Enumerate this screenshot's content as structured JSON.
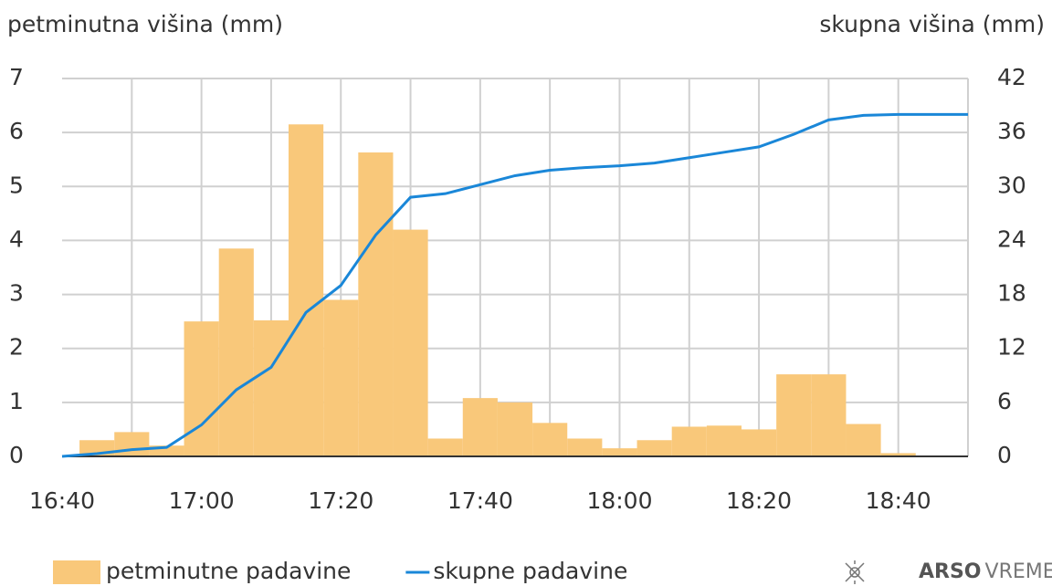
{
  "chart_data": {
    "type": "bar-line",
    "y_label": "petminutna višina (mm)",
    "y2_label": "skupna višina (mm)",
    "xlim": [
      "16:40",
      "18:50"
    ],
    "xticks": [
      "16:40",
      "17:00",
      "17:20",
      "17:40",
      "18:00",
      "18:20",
      "18:40"
    ],
    "xgrid": [
      "16:50",
      "17:00",
      "17:10",
      "17:20",
      "17:30",
      "17:40",
      "17:50",
      "18:00",
      "18:10",
      "18:20",
      "18:30",
      "18:40",
      "18:50"
    ],
    "ylim": [
      0,
      7
    ],
    "yticks": [
      0,
      1,
      2,
      3,
      4,
      5,
      6,
      7
    ],
    "y2lim": [
      0,
      42
    ],
    "y2ticks": [
      0,
      6,
      12,
      18,
      24,
      30,
      36,
      42
    ],
    "grid": true,
    "series": [
      {
        "name": "petminutne padavine",
        "type": "bar",
        "color": "#f9c87a",
        "x": [
          "16:45",
          "16:50",
          "16:55",
          "17:00",
          "17:05",
          "17:10",
          "17:15",
          "17:20",
          "17:25",
          "17:30",
          "17:35",
          "17:40",
          "17:45",
          "17:50",
          "17:55",
          "18:00",
          "18:05",
          "18:10",
          "18:15",
          "18:20",
          "18:25",
          "18:30",
          "18:35",
          "18:40"
        ],
        "values": [
          0.3,
          0.45,
          0.2,
          2.5,
          3.85,
          2.52,
          6.15,
          2.9,
          5.63,
          4.2,
          0.33,
          1.08,
          1.0,
          0.62,
          0.33,
          0.15,
          0.3,
          0.55,
          0.57,
          0.5,
          1.52,
          1.52,
          0.6,
          0.06
        ]
      },
      {
        "name": "skupne padavine",
        "type": "line",
        "axis": "y2",
        "color": "#1a87d8",
        "x": [
          "16:40",
          "16:45",
          "16:50",
          "16:55",
          "17:00",
          "17:05",
          "17:10",
          "17:15",
          "17:20",
          "17:25",
          "17:30",
          "17:35",
          "17:40",
          "17:45",
          "17:50",
          "17:55",
          "18:00",
          "18:05",
          "18:10",
          "18:15",
          "18:20",
          "18:25",
          "18:30",
          "18:35",
          "18:40",
          "18:45",
          "18:50"
        ],
        "values": [
          0,
          0.3,
          0.75,
          1.0,
          3.5,
          7.4,
          9.9,
          16.0,
          19.0,
          24.6,
          28.8,
          29.2,
          30.2,
          31.2,
          31.8,
          32.1,
          32.3,
          32.6,
          33.2,
          33.8,
          34.4,
          35.8,
          37.4,
          37.9,
          38.0,
          38.0,
          38.0
        ]
      }
    ],
    "brand": [
      "ARSO",
      "VREME"
    ]
  }
}
